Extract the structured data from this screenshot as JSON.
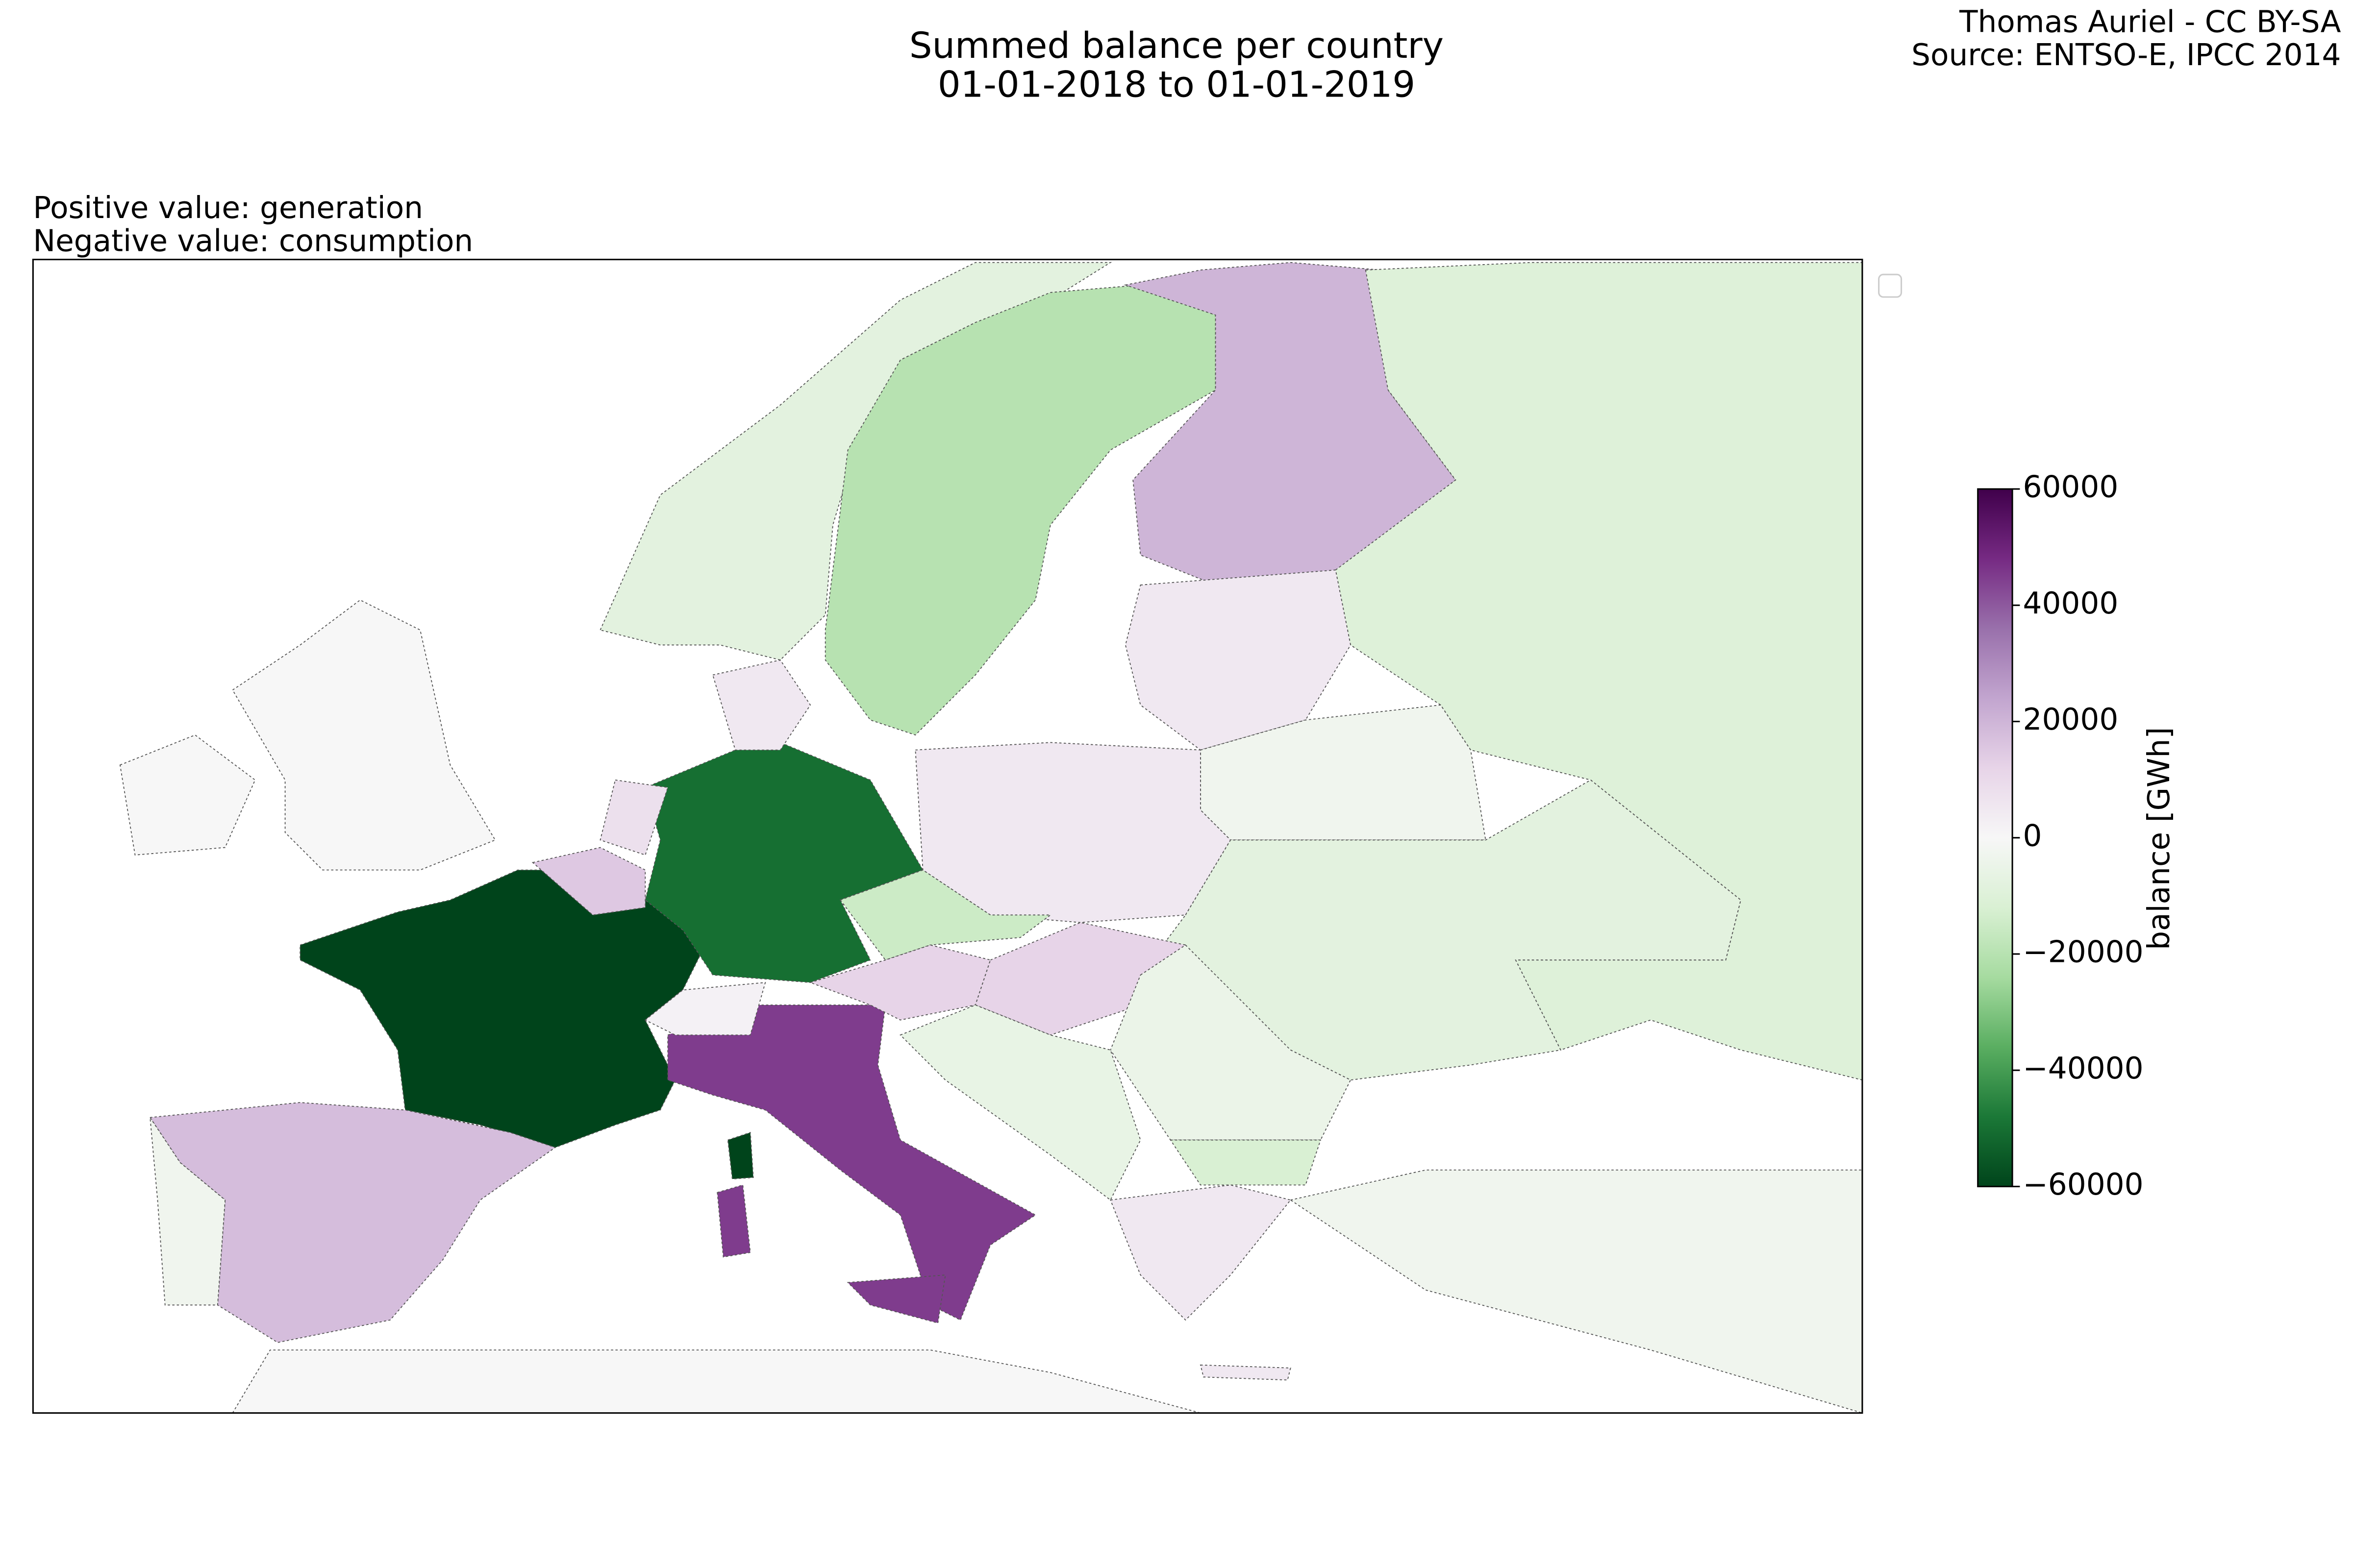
{
  "chart_data": {
    "type": "choropleth",
    "title": "Summed balance per country",
    "subtitle": "01-01-2018 to 01-01-2019",
    "credit": [
      "Thomas Auriel - CC BY-SA",
      "Source: ENTSO-E, IPCC 2014"
    ],
    "annotations": [
      "Positive value: generation",
      "Negative value: consumption"
    ],
    "colorbar_label": "balance [GWh]",
    "clim": [
      -60000,
      60000
    ],
    "colorbar_ticks": [
      {
        "value": -60000,
        "label": "−60000"
      },
      {
        "value": -40000,
        "label": "−40000"
      },
      {
        "value": -20000,
        "label": "−20000"
      },
      0,
      20000,
      40000,
      60000
    ],
    "colormap": [
      "#00441b",
      "#1b7837",
      "#5aae61",
      "#a6dba0",
      "#d9f0d3",
      "#f7f7f7",
      "#e7d4e8",
      "#c2a5cf",
      "#9970ab",
      "#762a83",
      "#40004b"
    ],
    "values": [
      -60000,
      -50000,
      45000,
      18000,
      -3000,
      0,
      -8000,
      -20000,
      20000,
      -10000,
      5000,
      -3000,
      5000,
      -8000,
      -15000,
      12000,
      12000,
      2000,
      -5000,
      -12000,
      5000,
      -3000,
      8000,
      15000,
      5000,
      -6000,
      0
    ]
  }
}
